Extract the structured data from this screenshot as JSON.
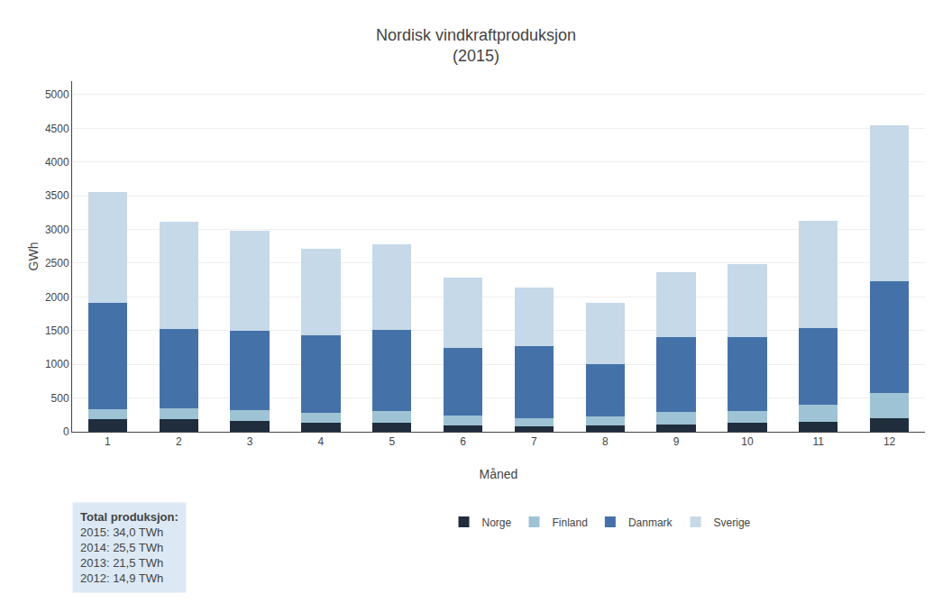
{
  "chart_data": {
    "type": "bar",
    "stacked": true,
    "title": "Nordisk vindkraftproduksjon\n(2015)",
    "xlabel": "Måned",
    "ylabel": "GWh",
    "categories": [
      "1",
      "2",
      "3",
      "4",
      "5",
      "6",
      "7",
      "8",
      "9",
      "10",
      "11",
      "12"
    ],
    "series": [
      {
        "name": "Norge",
        "color": "#1f2d3d",
        "values": [
          190,
          185,
          160,
          140,
          130,
          90,
          75,
          95,
          110,
          130,
          145,
          200
        ]
      },
      {
        "name": "Finland",
        "color": "#9dc3d4",
        "values": [
          150,
          160,
          155,
          145,
          175,
          150,
          120,
          130,
          180,
          175,
          260,
          370
        ]
      },
      {
        "name": "Danmark",
        "color": "#4472a8",
        "values": [
          1570,
          1185,
          1180,
          1150,
          1200,
          1000,
          1070,
          780,
          1110,
          1100,
          1130,
          1660
        ]
      },
      {
        "name": "Sverige",
        "color": "#c5d9e8",
        "values": [
          1640,
          1580,
          1490,
          1280,
          1280,
          1040,
          870,
          910,
          970,
          1080,
          1590,
          2320
        ]
      }
    ],
    "ylim": [
      0,
      5200
    ],
    "yticks": [
      0,
      500,
      1000,
      1500,
      2000,
      2500,
      3000,
      3500,
      4000,
      4500,
      5000
    ],
    "grid": true,
    "legend": "bottom",
    "annotations": [
      "Total produksjon:",
      "2015: 34,0 TWh",
      "2014: 25,5 TWh",
      "2013: 21,5 TWh",
      "2012: 14,9 TWh"
    ]
  }
}
